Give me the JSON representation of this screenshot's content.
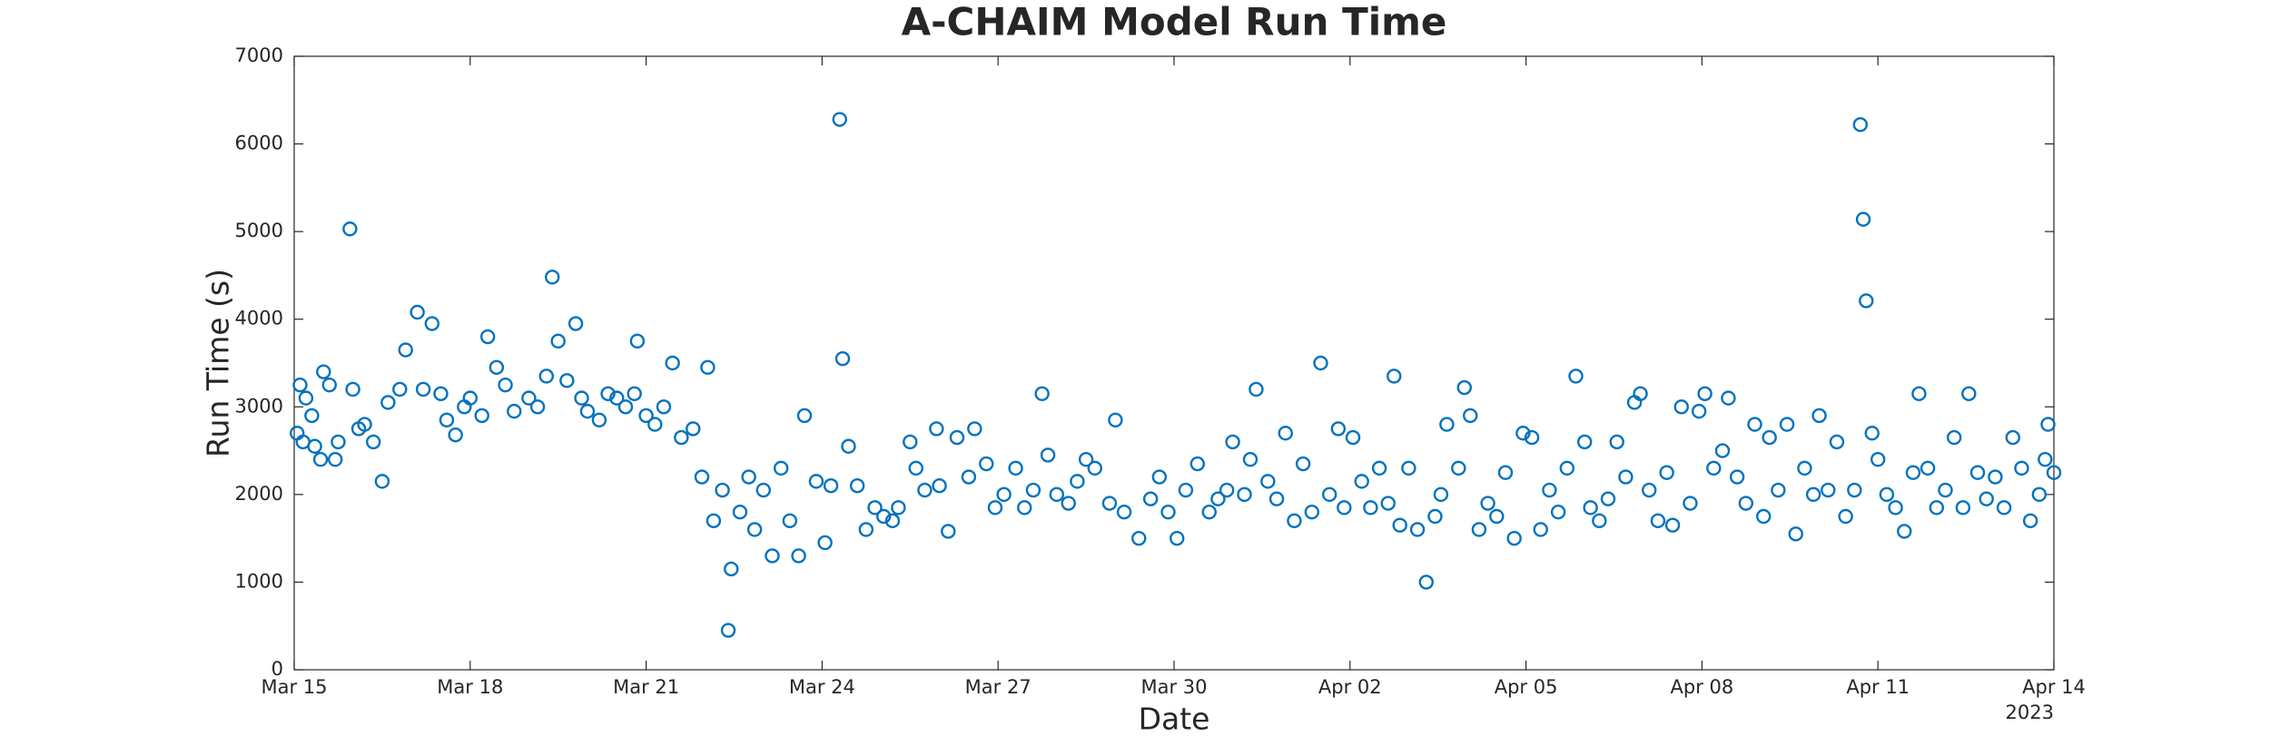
{
  "chart_data": {
    "type": "scatter",
    "title": "A-CHAIM Model Run Time",
    "x_label": "Date",
    "y_label": "Run Time (s)",
    "x_year_label": "2023",
    "color": "#0072bd",
    "xlim": [
      0,
      30
    ],
    "xticks": [
      {
        "value": 0,
        "label": "Mar 15"
      },
      {
        "value": 3,
        "label": "Mar 18"
      },
      {
        "value": 6,
        "label": "Mar 21"
      },
      {
        "value": 9,
        "label": "Mar 24"
      },
      {
        "value": 12,
        "label": "Mar 27"
      },
      {
        "value": 15,
        "label": "Mar 30"
      },
      {
        "value": 18,
        "label": "Apr 02"
      },
      {
        "value": 21,
        "label": "Apr 05"
      },
      {
        "value": 24,
        "label": "Apr 08"
      },
      {
        "value": 27,
        "label": "Apr 11"
      },
      {
        "value": 30,
        "label": "Apr 14"
      }
    ],
    "ylim": [
      0,
      7000
    ],
    "yticks": [
      0,
      1000,
      2000,
      3000,
      4000,
      5000,
      6000,
      7000
    ],
    "x": [
      0.05,
      0.1,
      0.15,
      0.2,
      0.3,
      0.35,
      0.45,
      0.5,
      0.6,
      0.7,
      0.75,
      0.95,
      1.0,
      1.1,
      1.2,
      1.35,
      1.5,
      1.6,
      1.8,
      1.9,
      2.1,
      2.2,
      2.35,
      2.5,
      2.6,
      2.75,
      2.9,
      3.0,
      3.2,
      3.3,
      3.45,
      3.6,
      3.75,
      4.0,
      4.15,
      4.3,
      4.4,
      4.5,
      4.65,
      4.8,
      4.9,
      5.0,
      5.2,
      5.35,
      5.5,
      5.65,
      5.8,
      5.85,
      6.0,
      6.15,
      6.3,
      6.45,
      6.6,
      6.8,
      6.95,
      7.05,
      7.15,
      7.3,
      7.4,
      7.45,
      7.6,
      7.75,
      7.85,
      8.0,
      8.15,
      8.3,
      8.45,
      8.6,
      8.7,
      8.9,
      9.05,
      9.15,
      9.3,
      9.35,
      9.45,
      9.6,
      9.75,
      9.9,
      10.05,
      10.2,
      10.3,
      10.5,
      10.6,
      10.75,
      10.95,
      11.0,
      11.15,
      11.3,
      11.5,
      11.6,
      11.8,
      11.95,
      12.1,
      12.3,
      12.45,
      12.6,
      12.75,
      12.85,
      13.0,
      13.2,
      13.35,
      13.5,
      13.65,
      13.9,
      14.0,
      14.15,
      14.4,
      14.6,
      14.75,
      14.9,
      15.05,
      15.2,
      15.4,
      15.6,
      15.75,
      15.9,
      16.0,
      16.2,
      16.3,
      16.4,
      16.6,
      16.75,
      16.9,
      17.05,
      17.2,
      17.35,
      17.5,
      17.65,
      17.8,
      17.9,
      18.05,
      18.2,
      18.35,
      18.5,
      18.65,
      18.75,
      18.85,
      19.0,
      19.15,
      19.3,
      19.45,
      19.55,
      19.65,
      19.85,
      19.95,
      20.05,
      20.2,
      20.35,
      20.5,
      20.65,
      20.8,
      20.95,
      21.1,
      21.25,
      21.4,
      21.55,
      21.7,
      21.85,
      22.0,
      22.1,
      22.25,
      22.4,
      22.55,
      22.7,
      22.85,
      22.95,
      23.1,
      23.25,
      23.4,
      23.5,
      23.65,
      23.8,
      23.95,
      24.05,
      24.2,
      24.35,
      24.45,
      24.6,
      24.75,
      24.9,
      25.05,
      25.15,
      25.3,
      25.45,
      25.6,
      25.75,
      25.9,
      26.0,
      26.15,
      26.3,
      26.45,
      26.6,
      26.7,
      26.75,
      26.8,
      26.9,
      27.0,
      27.15,
      27.3,
      27.45,
      27.6,
      27.7,
      27.85,
      28.0,
      28.15,
      28.3,
      28.45,
      28.55,
      28.7,
      28.85,
      29.0,
      29.15,
      29.3,
      29.45,
      29.6,
      29.75,
      29.85,
      29.9,
      30.0
    ],
    "values": [
      2700,
      3250,
      2600,
      3100,
      2900,
      2550,
      2400,
      3400,
      3250,
      2400,
      2600,
      5030,
      3200,
      2750,
      2800,
      2600,
      2150,
      3050,
      3200,
      3650,
      4080,
      3200,
      3950,
      3150,
      2850,
      2680,
      3000,
      3100,
      2900,
      3800,
      3450,
      3250,
      2950,
      3100,
      3000,
      3350,
      4480,
      3750,
      3300,
      3950,
      3100,
      2950,
      2850,
      3150,
      3100,
      3000,
      3150,
      3750,
      2900,
      2800,
      3000,
      3500,
      2650,
      2750,
      2200,
      3450,
      1700,
      2050,
      450,
      1150,
      1800,
      2200,
      1600,
      2050,
      1300,
      2300,
      1700,
      1300,
      2900,
      2150,
      1450,
      2100,
      6280,
      3550,
      2550,
      2100,
      1600,
      1850,
      1750,
      1700,
      1850,
      2600,
      2300,
      2050,
      2750,
      2100,
      1580,
      2650,
      2200,
      2750,
      2350,
      1850,
      2000,
      2300,
      1850,
      2050,
      3150,
      2450,
      2000,
      1900,
      2150,
      2400,
      2300,
      1900,
      2850,
      1800,
      1500,
      1950,
      2200,
      1800,
      1500,
      2050,
      2350,
      1800,
      1950,
      2050,
      2600,
      2000,
      2400,
      3200,
      2150,
      1950,
      2700,
      1700,
      2350,
      1800,
      3500,
      2000,
      2750,
      1850,
      2650,
      2150,
      1850,
      2300,
      1900,
      3350,
      1650,
      2300,
      1600,
      1000,
      1750,
      2000,
      2800,
      2300,
      3220,
      2900,
      1600,
      1900,
      1750,
      2250,
      1500,
      2700,
      2650,
      1600,
      2050,
      1800,
      2300,
      3350,
      2600,
      1850,
      1700,
      1950,
      2600,
      2200,
      3050,
      3150,
      2050,
      1700,
      2250,
      1650,
      3000,
      1900,
      2950,
      3150,
      2300,
      2500,
      3100,
      2200,
      1900,
      2800,
      1750,
      2650,
      2050,
      2800,
      1550,
      2300,
      2000,
      2900,
      2050,
      2600,
      1750,
      2050,
      6220,
      5140,
      4210,
      2700,
      2400,
      2000,
      1850,
      1580,
      2250,
      3150,
      2300,
      1850,
      2050,
      2650,
      1850,
      3150,
      2250,
      1950,
      2200,
      1850,
      2650,
      2300,
      1700,
      2000,
      2400,
      2800,
      2250
    ]
  }
}
